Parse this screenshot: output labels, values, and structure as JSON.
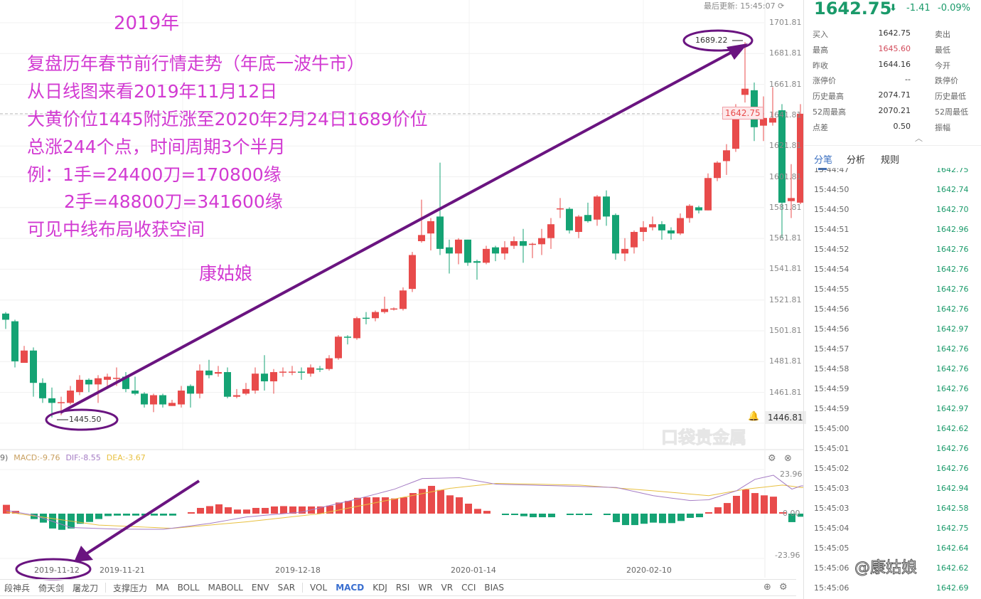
{
  "header": {
    "last_update": "最后更新: 15:45:07",
    "refresh_icon": "refresh-icon"
  },
  "annotations": {
    "year": "2019年",
    "lines": [
      "复盘历年春节前行情走势（年底一波牛市）",
      "从日线图来看2019年11月12日",
      "大黄价位1445附近涨至2020年2月24日1689价位",
      "总涨244个点，时间周期3个半月",
      "例：1手=24400刀=170800缘",
      "2手=48800刀=341600缘",
      "可见中线布局收获空间"
    ],
    "author": "康姑娘",
    "high_label": "1689.22",
    "low_label": "1445.50",
    "start_date_circled": "2019-11-12",
    "arrow_color": "#6a1480"
  },
  "watermark_chart": "口袋贵金属",
  "watermark_corner": "@康姑娘",
  "colors": {
    "up": "#e84b4b",
    "down": "#15a374",
    "annotation": "#d23ad2",
    "dif": "#a57cc4",
    "dea": "#e8c040",
    "macd": "#c9a060"
  },
  "chart_data": [
    {
      "type": "candlestick",
      "y_ticks": [
        "1701.81",
        "1681.81",
        "1661.81",
        "1641.81",
        "1621.81",
        "1601.81",
        "1581.81",
        "1561.81",
        "1541.81",
        "1521.81",
        "1501.81",
        "1481.81",
        "1461.81",
        "1441.81"
      ],
      "ylim": [
        1441.81,
        1701.81
      ],
      "current_price": "1642.75",
      "alert_price": "1446.81",
      "x_ticks": [
        "2019-11-12",
        "2019-11-21",
        "2019-12-18",
        "2020-01-14",
        "2020-02-10"
      ],
      "ohlc": [
        [
          1513,
          1514,
          1503,
          1509
        ],
        [
          1508,
          1509,
          1478,
          1482
        ],
        [
          1481,
          1492,
          1481,
          1489
        ],
        [
          1489,
          1491,
          1459,
          1468
        ],
        [
          1468,
          1471,
          1455,
          1458
        ],
        [
          1458,
          1465,
          1445.5,
          1455
        ],
        [
          1455,
          1459,
          1447,
          1455.5
        ],
        [
          1455,
          1466,
          1454,
          1463
        ],
        [
          1462,
          1473,
          1460,
          1470
        ],
        [
          1470,
          1471,
          1462,
          1467
        ],
        [
          1467,
          1473,
          1455,
          1471
        ],
        [
          1470,
          1474,
          1464,
          1472
        ],
        [
          1471,
          1478,
          1466,
          1471.3
        ],
        [
          1472,
          1475,
          1462,
          1464
        ],
        [
          1463,
          1472,
          1460,
          1461
        ],
        [
          1461,
          1462,
          1452,
          1454
        ],
        [
          1454,
          1461,
          1449,
          1460
        ],
        [
          1460,
          1461,
          1452,
          1454
        ],
        [
          1453,
          1457,
          1453,
          1455
        ],
        [
          1454,
          1466,
          1452,
          1463
        ],
        [
          1466,
          1467,
          1452,
          1461
        ],
        [
          1461,
          1480,
          1458,
          1476
        ],
        [
          1476,
          1483,
          1471,
          1473
        ],
        [
          1474,
          1479,
          1472,
          1475
        ],
        [
          1475,
          1478,
          1458,
          1459
        ],
        [
          1459,
          1464,
          1458,
          1460
        ],
        [
          1461,
          1468,
          1460,
          1464
        ],
        [
          1463,
          1478,
          1461,
          1474
        ],
        [
          1474,
          1486,
          1463,
          1469
        ],
        [
          1469,
          1477,
          1461,
          1475
        ],
        [
          1475,
          1478,
          1472,
          1475.3
        ],
        [
          1475,
          1479,
          1473,
          1475.3
        ],
        [
          1475.3,
          1478,
          1470,
          1475
        ],
        [
          1474,
          1480,
          1472,
          1478
        ],
        [
          1477.3,
          1479,
          1475,
          1477
        ],
        [
          1477,
          1486,
          1476,
          1484
        ],
        [
          1484,
          1499,
          1483,
          1498
        ],
        [
          1498,
          1499,
          1493,
          1497.5
        ],
        [
          1497,
          1511,
          1496,
          1510
        ],
        [
          1510.3,
          1514,
          1506,
          1510
        ],
        [
          1510,
          1515,
          1508,
          1514
        ],
        [
          1514,
          1524,
          1513,
          1516
        ],
        [
          1516,
          1517,
          1515,
          1516.3
        ],
        [
          1516,
          1530,
          1515,
          1528
        ],
        [
          1529,
          1553,
          1527,
          1551
        ],
        [
          1560,
          1587,
          1559,
          1564
        ],
        [
          1565,
          1575,
          1554,
          1573
        ],
        [
          1576,
          1611,
          1551,
          1555
        ],
        [
          1556,
          1561,
          1539,
          1552
        ],
        [
          1552,
          1562,
          1545,
          1561
        ],
        [
          1561,
          1561,
          1544,
          1546
        ],
        [
          1547,
          1548,
          1535,
          1546
        ],
        [
          1546,
          1557,
          1545,
          1555
        ],
        [
          1556,
          1557,
          1547,
          1552
        ],
        [
          1552,
          1560,
          1548,
          1556
        ],
        [
          1557,
          1563,
          1555,
          1560
        ],
        [
          1560,
          1568,
          1546,
          1557
        ],
        [
          1558,
          1559,
          1549,
          1558.3
        ],
        [
          1558,
          1568,
          1551,
          1562
        ],
        [
          1562,
          1575,
          1555,
          1571
        ],
        [
          1581,
          1588,
          1575,
          1581.3
        ],
        [
          1581,
          1582,
          1565,
          1567
        ],
        [
          1566,
          1577,
          1562,
          1576
        ],
        [
          1577,
          1585,
          1572,
          1573
        ],
        [
          1574,
          1590,
          1570,
          1589
        ],
        [
          1589,
          1593,
          1570,
          1576
        ],
        [
          1577,
          1578,
          1548,
          1552
        ],
        [
          1552,
          1562,
          1547,
          1555
        ],
        [
          1556,
          1567,
          1552,
          1566
        ],
        [
          1566,
          1573,
          1560,
          1569
        ],
        [
          1569,
          1576,
          1567,
          1571
        ],
        [
          1571,
          1573,
          1561,
          1567
        ],
        [
          1567,
          1569,
          1561,
          1565
        ],
        [
          1565,
          1578,
          1564,
          1575
        ],
        [
          1575,
          1584,
          1572,
          1583
        ],
        [
          1582,
          1583,
          1578,
          1580
        ],
        [
          1580,
          1604,
          1580,
          1601
        ],
        [
          1601,
          1612,
          1599,
          1611
        ],
        [
          1612,
          1623,
          1603,
          1619
        ],
        [
          1620,
          1649,
          1618,
          1643
        ],
        [
          1655,
          1689.22,
          1650,
          1659
        ],
        [
          1658,
          1663,
          1625,
          1634
        ],
        [
          1635,
          1654,
          1625,
          1640
        ],
        [
          1637,
          1660,
          1635,
          1640
        ],
        [
          1645,
          1649,
          1562,
          1585
        ],
        [
          1586,
          1610,
          1575,
          1588
        ],
        [
          1585,
          1649,
          1584,
          1642.75
        ]
      ]
    },
    {
      "type": "bar+line",
      "header_prefix": "9)",
      "macd_label": "MACD:-9.76",
      "dif_label": "DIF:-8.55",
      "dea_label": "DEA:-3.67",
      "y_ticks": [
        "23.96",
        "0.00",
        "-23.96"
      ],
      "ylim": [
        -23.96,
        23.96
      ],
      "macd": [
        5.4,
        1.7,
        0,
        -3.3,
        -5.5,
        -9.1,
        -9.9,
        -9.1,
        -6.2,
        -5.1,
        -3.3,
        -1.5,
        -1.2,
        -1.2,
        -1.2,
        -1.2,
        -1.2,
        -1.2,
        -1.2,
        0,
        0.3,
        3.5,
        4.6,
        5.7,
        3.9,
        2.5,
        2.5,
        3.5,
        3.5,
        4.4,
        4.6,
        4.4,
        4.4,
        4.4,
        4.4,
        4.9,
        6.8,
        7.8,
        9.7,
        10,
        10,
        10,
        9.3,
        10,
        12.6,
        15.1,
        17,
        14.5,
        11.2,
        10,
        6.1,
        2.9,
        1.7,
        0,
        -0.6,
        -0.6,
        -1.6,
        -2.2,
        -2.2,
        -2.2,
        0,
        -0.6,
        -0.6,
        -0.6,
        0,
        -0.6,
        -5.2,
        -7,
        -7,
        -6.2,
        -5.5,
        -5.8,
        -5.8,
        -4.5,
        -2.6,
        -2.2,
        0.4,
        3.9,
        6.5,
        10.9,
        14.8,
        12.6,
        11.2,
        10.4,
        0.4,
        -5.2,
        -1.9
      ],
      "dif": [
        [
          0,
          2
        ],
        [
          3,
          -1
        ],
        [
          7,
          -8.5
        ],
        [
          12,
          -9.5
        ],
        [
          17,
          -9.6
        ],
        [
          22,
          -6
        ],
        [
          26,
          -2
        ],
        [
          32,
          1
        ],
        [
          38,
          9
        ],
        [
          42,
          15
        ],
        [
          45,
          21.5
        ],
        [
          49,
          22
        ],
        [
          53,
          18
        ],
        [
          60,
          17
        ],
        [
          66,
          16
        ],
        [
          70,
          11
        ],
        [
          74,
          8
        ],
        [
          76,
          8.5
        ],
        [
          79,
          14
        ],
        [
          81,
          21
        ],
        [
          83,
          23.5
        ],
        [
          85,
          15
        ],
        [
          86,
          17
        ]
      ],
      "dea": [
        [
          0,
          1
        ],
        [
          5,
          -3
        ],
        [
          10,
          -7
        ],
        [
          18,
          -9
        ],
        [
          26,
          -5
        ],
        [
          34,
          0
        ],
        [
          42,
          9
        ],
        [
          48,
          15.5
        ],
        [
          53,
          18.5
        ],
        [
          62,
          17.5
        ],
        [
          70,
          14
        ],
        [
          76,
          11
        ],
        [
          80,
          15
        ],
        [
          84,
          17.5
        ],
        [
          86,
          16
        ]
      ]
    }
  ],
  "toolbar": {
    "items": [
      "段神兵",
      "倚天剑",
      "屠龙刀",
      "|",
      "支撑压力",
      "MA",
      "BOLL",
      "MABOLL",
      "ENV",
      "SAR",
      "|",
      "VOL",
      "MACD",
      "KDJ",
      "RSI",
      "WR",
      "VR",
      "CCI",
      "BIAS"
    ],
    "active": "MACD"
  },
  "quote": {
    "price": "1642.75",
    "arrow": "⬇",
    "change": "-1.41",
    "change_pct": "-0.09%",
    "rows": [
      {
        "l1": "买入",
        "v": "1642.75",
        "l2": "卖出"
      },
      {
        "l1": "最高",
        "v": "1645.60",
        "l2": "最低",
        "highlight": "#d24a5a"
      },
      {
        "l1": "昨收",
        "v": "1644.16",
        "l2": "今开"
      },
      {
        "l1": "涨停价",
        "v": "--",
        "l2": "跌停价"
      },
      {
        "l1": "历史最高",
        "v": "2074.71",
        "l2": "历史最低"
      },
      {
        "l1": "52周最高",
        "v": "2070.21",
        "l2": "52周最低"
      },
      {
        "l1": "点差",
        "v": "0.50",
        "l2": "振幅"
      }
    ],
    "tabs": [
      "分笔",
      "分析",
      "规则"
    ],
    "active_tab": "分笔"
  },
  "ticks": [
    {
      "t": "15:44:47",
      "p": "1642.75"
    },
    {
      "t": "15:44:50",
      "p": "1642.74"
    },
    {
      "t": "15:44:50",
      "p": "1642.70"
    },
    {
      "t": "15:44:51",
      "p": "1642.96"
    },
    {
      "t": "15:44:52",
      "p": "1642.76"
    },
    {
      "t": "15:44:54",
      "p": "1642.76"
    },
    {
      "t": "15:44:55",
      "p": "1642.76"
    },
    {
      "t": "15:44:56",
      "p": "1642.76"
    },
    {
      "t": "15:44:56",
      "p": "1642.97"
    },
    {
      "t": "15:44:57",
      "p": "1642.76"
    },
    {
      "t": "15:44:58",
      "p": "1642.76"
    },
    {
      "t": "15:44:59",
      "p": "1642.76"
    },
    {
      "t": "15:44:59",
      "p": "1642.97"
    },
    {
      "t": "15:45:00",
      "p": "1642.62"
    },
    {
      "t": "15:45:01",
      "p": "1642.76"
    },
    {
      "t": "15:45:02",
      "p": "1642.76"
    },
    {
      "t": "15:45:03",
      "p": "1642.94"
    },
    {
      "t": "15:45:03",
      "p": "1642.58"
    },
    {
      "t": "15:45:04",
      "p": "1642.75"
    },
    {
      "t": "15:45:05",
      "p": "1642.64"
    },
    {
      "t": "15:45:06",
      "p": "1642.62"
    },
    {
      "t": "15:45:06",
      "p": "1642.69"
    }
  ]
}
